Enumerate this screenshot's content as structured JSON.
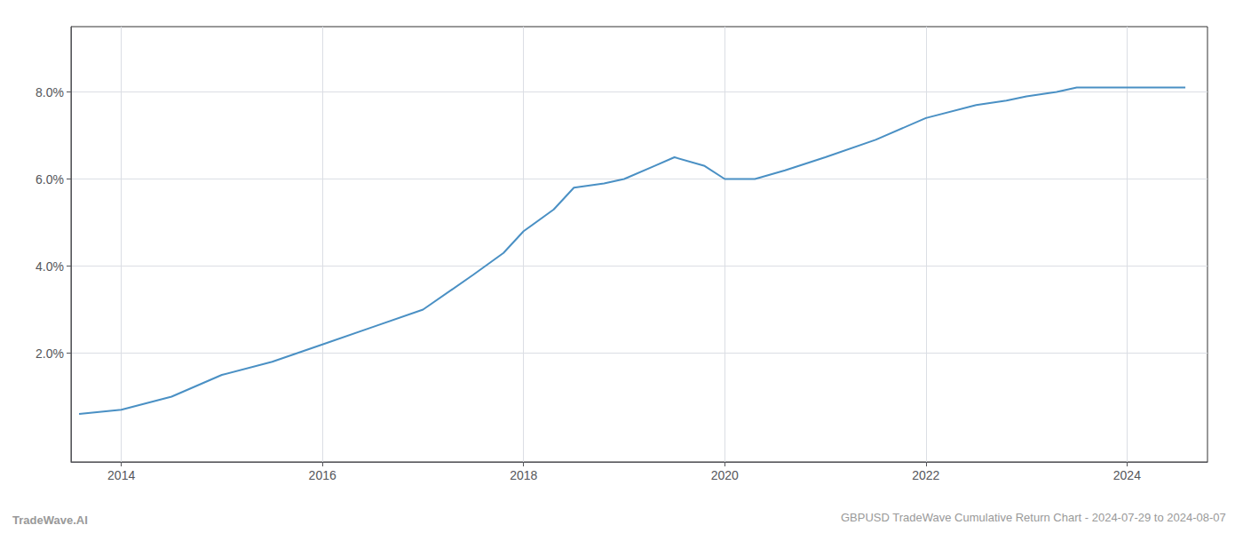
{
  "chart_data": {
    "type": "line",
    "title": "GBPUSD TradeWave Cumulative Return Chart - 2024-07-29 to 2024-08-07",
    "annotations": [
      "TradeWave.AI"
    ],
    "x": [
      2013.58,
      2014.0,
      2014.5,
      2015.0,
      2015.5,
      2016.0,
      2016.5,
      2017.0,
      2017.5,
      2017.8,
      2018.0,
      2018.3,
      2018.5,
      2018.8,
      2019.0,
      2019.3,
      2019.5,
      2019.8,
      2020.0,
      2020.3,
      2020.6,
      2021.0,
      2021.5,
      2022.0,
      2022.5,
      2022.8,
      2023.0,
      2023.3,
      2023.5,
      2023.8,
      2024.0,
      2024.3,
      2024.58
    ],
    "values": [
      0.006,
      0.007,
      0.01,
      0.015,
      0.018,
      0.022,
      0.026,
      0.03,
      0.038,
      0.043,
      0.048,
      0.053,
      0.058,
      0.059,
      0.06,
      0.063,
      0.065,
      0.063,
      0.06,
      0.06,
      0.062,
      0.065,
      0.069,
      0.074,
      0.077,
      0.078,
      0.079,
      0.08,
      0.081,
      0.081,
      0.081,
      0.081,
      0.081
    ],
    "color": "#4a90c4",
    "xlim": [
      2013.5,
      2024.8
    ],
    "ylim": [
      -0.005,
      0.095
    ],
    "xticks": [
      2014,
      2016,
      2018,
      2020,
      2022,
      2024
    ],
    "yticks": [
      {
        "value": 0.02,
        "label": "2.0%"
      },
      {
        "value": 0.04,
        "label": "4.0%"
      },
      {
        "value": 0.06,
        "label": "6.0%"
      },
      {
        "value": 0.08,
        "label": "8.0%"
      }
    ],
    "grid": true
  }
}
